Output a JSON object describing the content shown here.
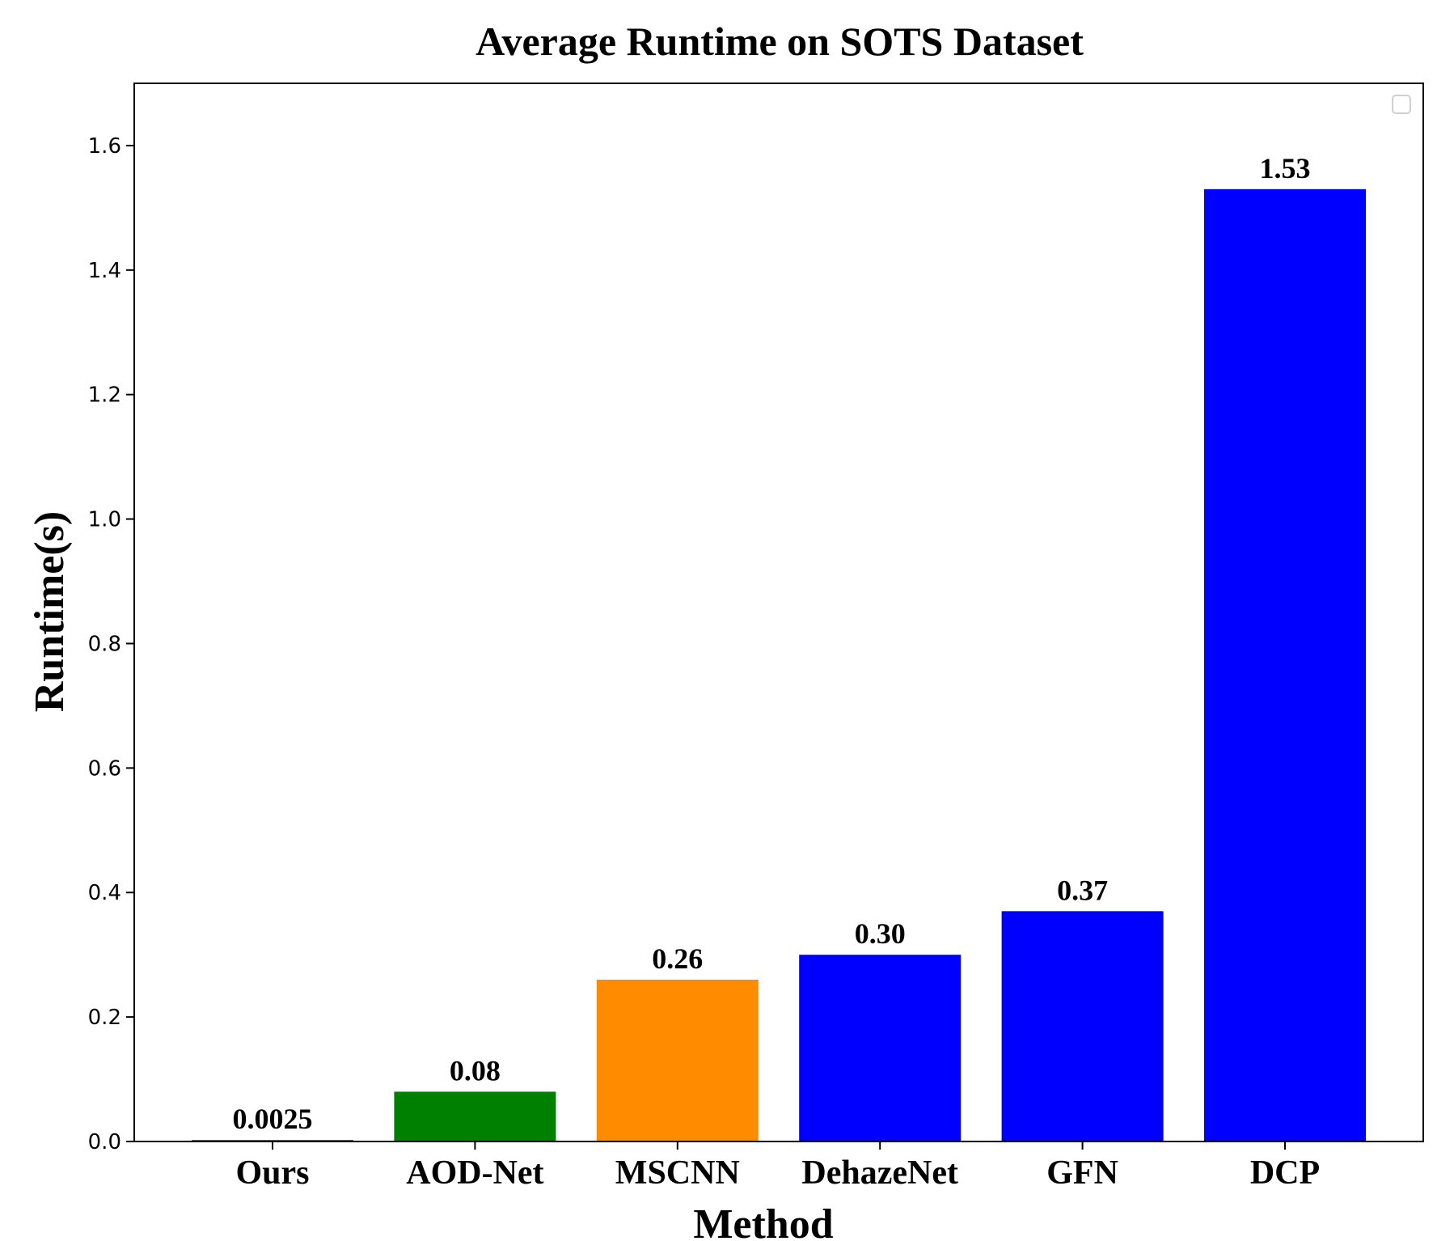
{
  "chart_data": {
    "type": "bar",
    "title": "Average Runtime on SOTS Dataset",
    "xlabel": "Method",
    "ylabel": "Runtime(s)",
    "categories": [
      "Ours",
      "AOD-Net",
      "MSCNN",
      "DehazeNet",
      "GFN",
      "DCP"
    ],
    "values": [
      0.0025,
      0.08,
      0.26,
      0.3,
      0.37,
      1.53
    ],
    "value_labels": [
      "0.0025",
      "0.08",
      "0.26",
      "0.30",
      "0.37",
      "1.53"
    ],
    "colors": [
      "#ff0000",
      "#008000",
      "#ff8c00",
      "#0000ff",
      "#0000ff",
      "#0000ff"
    ],
    "ylim": [
      0,
      1.7
    ],
    "yticks": [
      0.0,
      0.2,
      0.4,
      0.6,
      0.8,
      1.0,
      1.2,
      1.4,
      1.6
    ],
    "ytick_labels": [
      "0.0",
      "0.2",
      "0.4",
      "0.6",
      "0.8",
      "1.0",
      "1.2",
      "1.4",
      "1.6"
    ],
    "grid": false,
    "legend": {
      "placement": "top-right",
      "entries": []
    }
  }
}
